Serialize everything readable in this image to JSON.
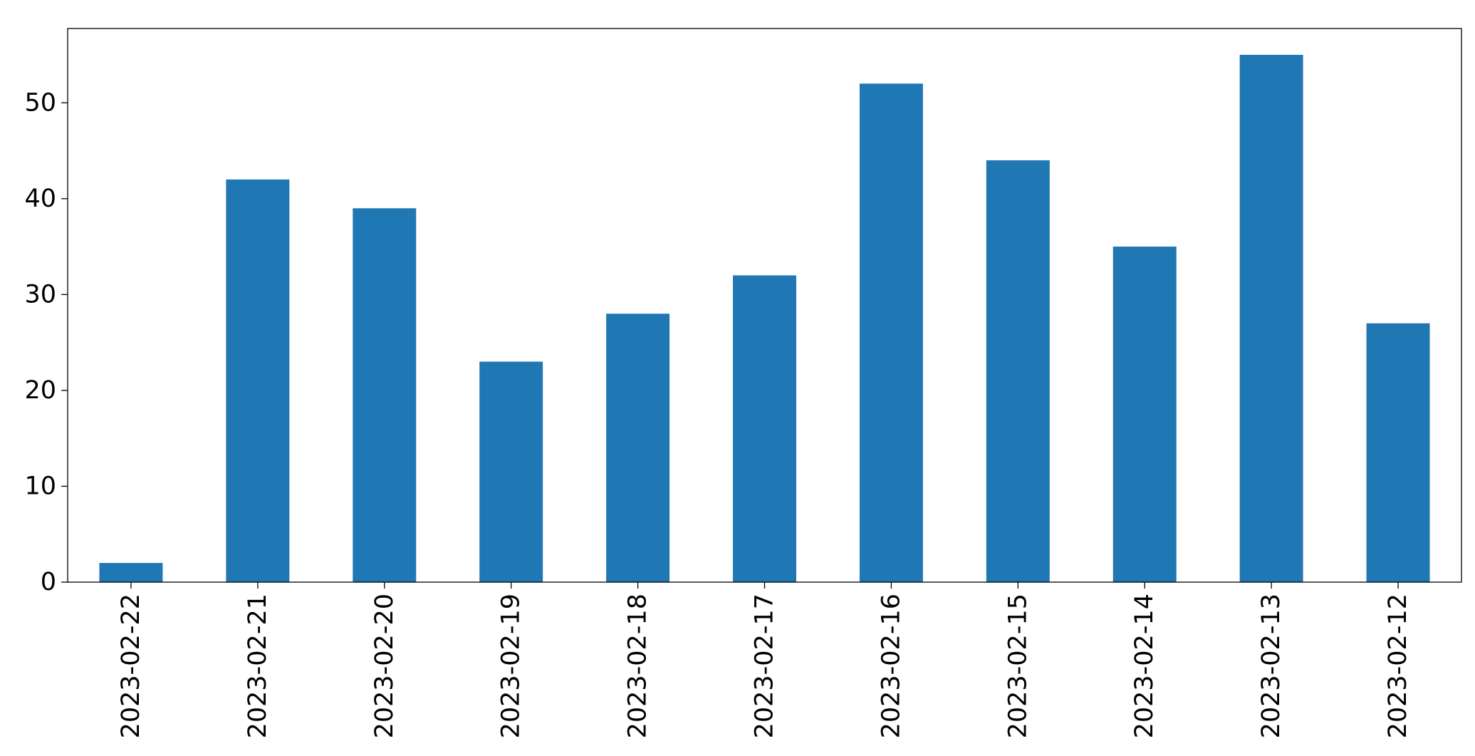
{
  "chart_data": {
    "type": "bar",
    "categories": [
      "2023-02-22",
      "2023-02-21",
      "2023-02-20",
      "2023-02-19",
      "2023-02-18",
      "2023-02-17",
      "2023-02-16",
      "2023-02-15",
      "2023-02-14",
      "2023-02-13",
      "2023-02-12"
    ],
    "values": [
      2,
      42,
      39,
      23,
      28,
      32,
      52,
      44,
      35,
      55,
      27
    ],
    "color": "#1f77b4",
    "ylim": [
      0,
      57.75
    ],
    "yticks": [
      0,
      10,
      20,
      30,
      40,
      50
    ],
    "grid": false
  }
}
